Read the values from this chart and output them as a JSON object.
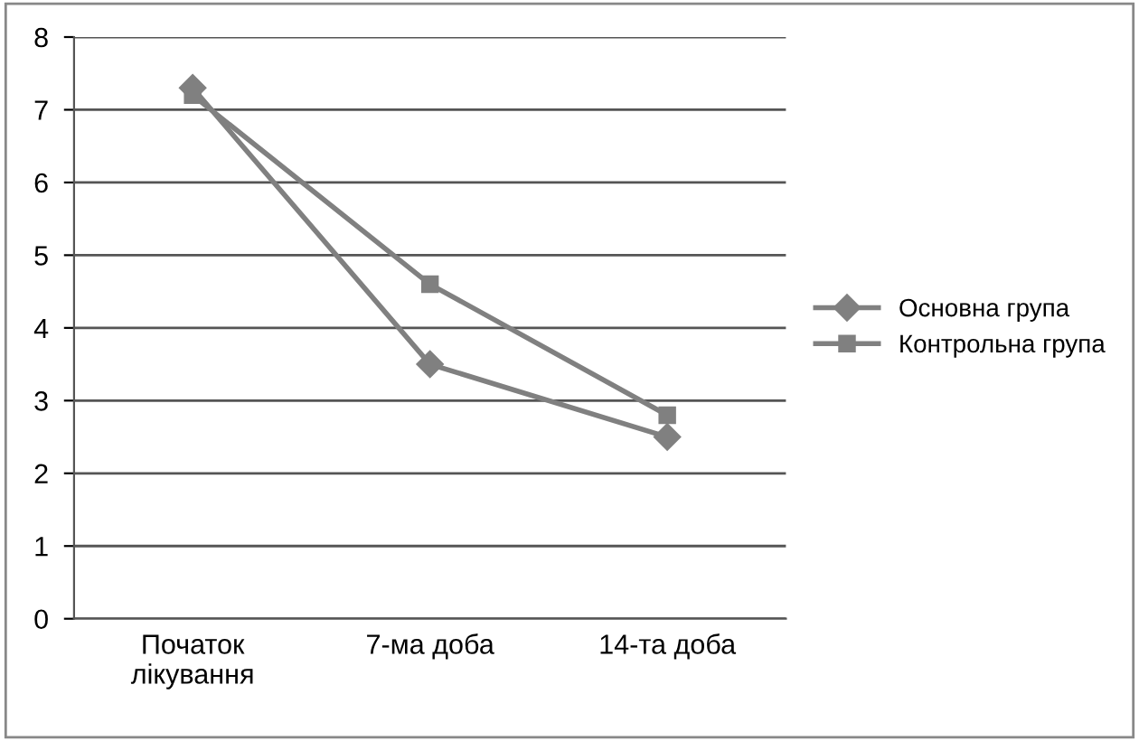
{
  "chart_data": {
    "type": "line",
    "categories": [
      "Початок\nлікування",
      "7-ма доба",
      "14-та доба"
    ],
    "series": [
      {
        "name": "Основна група",
        "color": "#808080",
        "marker": "diamond",
        "values": [
          7.3,
          3.5,
          2.5
        ]
      },
      {
        "name": "Контрольна група",
        "color": "#808080",
        "marker": "square",
        "values": [
          7.2,
          4.6,
          2.8
        ]
      }
    ],
    "ylim": [
      0,
      8
    ],
    "yticks": [
      0,
      1,
      2,
      3,
      4,
      5,
      6,
      7,
      8
    ],
    "grid": "y",
    "legend": "right",
    "line_style": "solid"
  }
}
